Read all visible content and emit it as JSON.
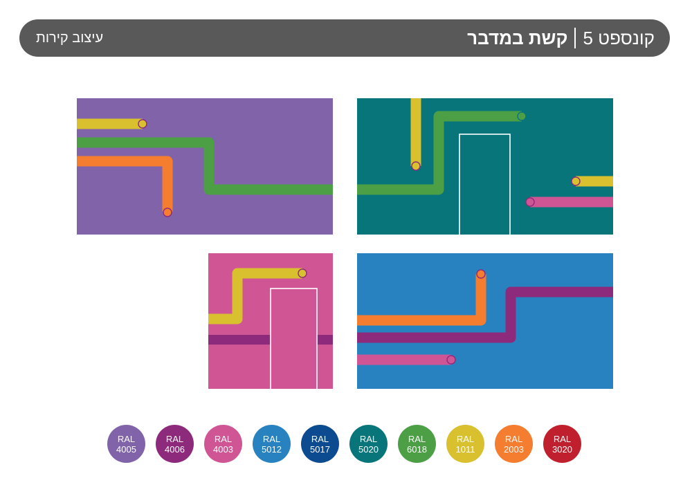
{
  "header": {
    "concept_label": "קונספט 5",
    "concept_name": "קשת במדבר",
    "subtitle": "עיצוב קירות"
  },
  "colors": {
    "header_bg": "#595959",
    "purple": "#8063a9",
    "teal": "#07757a",
    "pink": "#d05594",
    "blue": "#2782bf",
    "yellow": "#d9c02e",
    "green": "#4d9f46",
    "orange": "#f47d30",
    "magenta": "#8e2a7c"
  },
  "swatches": [
    {
      "brand": "RAL",
      "code": "4005",
      "color": "#8063a9"
    },
    {
      "brand": "RAL",
      "code": "4006",
      "color": "#8e2a7c"
    },
    {
      "brand": "RAL",
      "code": "4003",
      "color": "#d05594"
    },
    {
      "brand": "RAL",
      "code": "5012",
      "color": "#2782bf"
    },
    {
      "brand": "RAL",
      "code": "5017",
      "color": "#0d4b91"
    },
    {
      "brand": "RAL",
      "code": "5020",
      "color": "#07757a"
    },
    {
      "brand": "RAL",
      "code": "6018",
      "color": "#4d9f46"
    },
    {
      "brand": "RAL",
      "code": "1011",
      "color": "#d9c02e"
    },
    {
      "brand": "RAL",
      "code": "2003",
      "color": "#f47d30"
    },
    {
      "brand": "RAL",
      "code": "3020",
      "color": "#c0202e"
    }
  ]
}
